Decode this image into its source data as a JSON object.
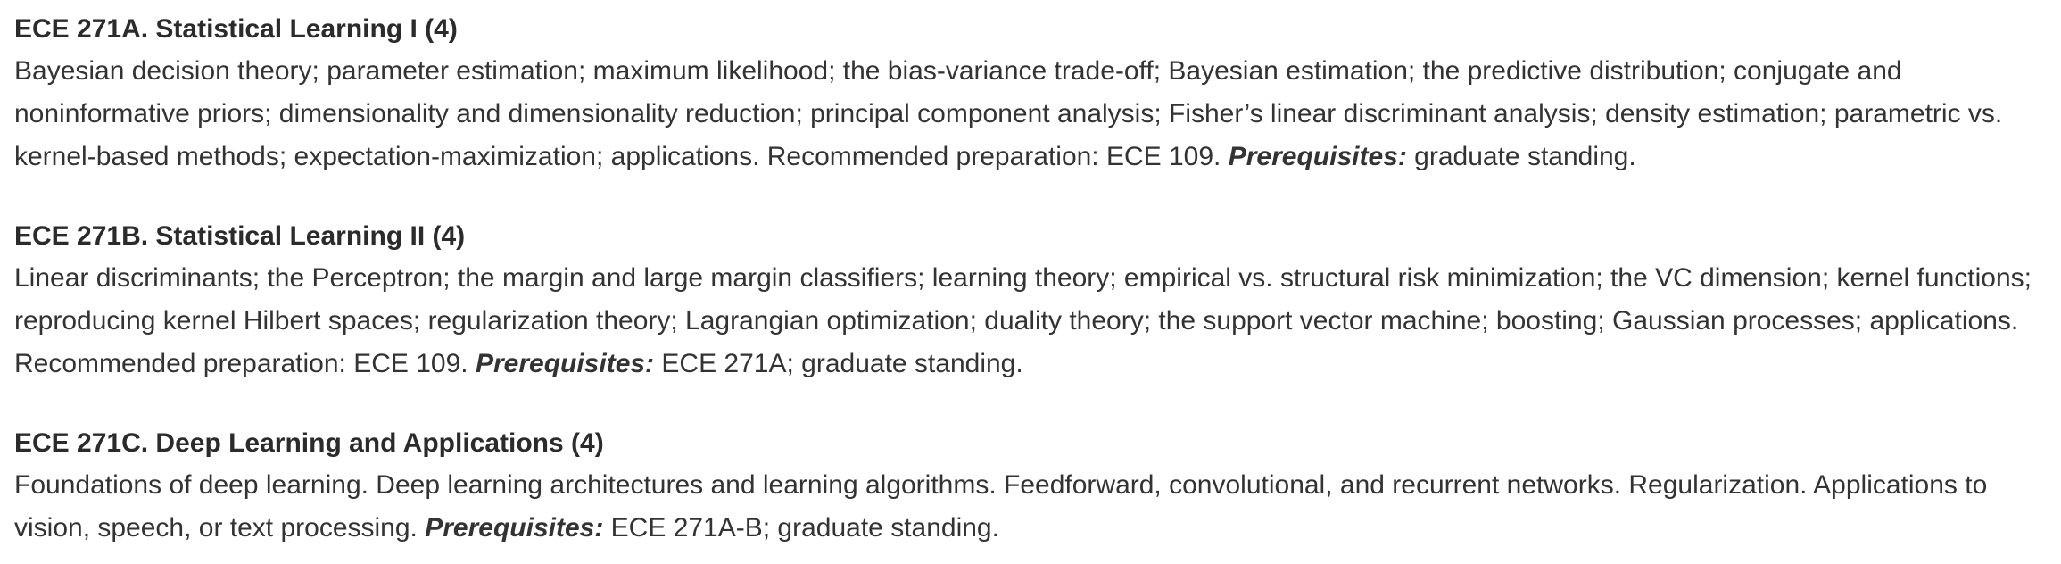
{
  "courses": [
    {
      "title": "ECE 271A. Statistical Learning I (4)",
      "description": "Bayesian decision theory; parameter estimation; maximum likelihood; the bias-variance trade-off; Bayesian estimation; the predictive distribution; conjugate and noninformative priors; dimensionality and dimensionality reduction; principal component analysis; Fisher’s linear discriminant analysis; density estimation; parametric vs. kernel-based methods; expectation-maximization; applications. Recommended preparation: ECE 109.",
      "prereq_label": "Prerequisites:",
      "prereq_text": "graduate standing."
    },
    {
      "title": "ECE 271B. Statistical Learning II (4)",
      "description": "Linear discriminants; the Perceptron; the margin and large margin classifiers; learning theory; empirical vs. structural risk minimization; the VC dimension; kernel functions; reproducing kernel Hilbert spaces; regularization theory; Lagrangian optimization; duality theory; the support vector machine; boosting; Gaussian processes; applications. Recommended preparation: ECE 109.",
      "prereq_label": "Prerequisites:",
      "prereq_text": "ECE 271A; graduate standing."
    },
    {
      "title": "ECE 271C. Deep Learning and Applications (4)",
      "description": "Foundations of deep learning. Deep learning architectures and learning algorithms. Feedforward, convolutional, and recurrent networks. Regularization. Applications to vision, speech, or text processing.",
      "prereq_label": "Prerequisites:",
      "prereq_text": "ECE 271A-B; graduate standing."
    }
  ]
}
